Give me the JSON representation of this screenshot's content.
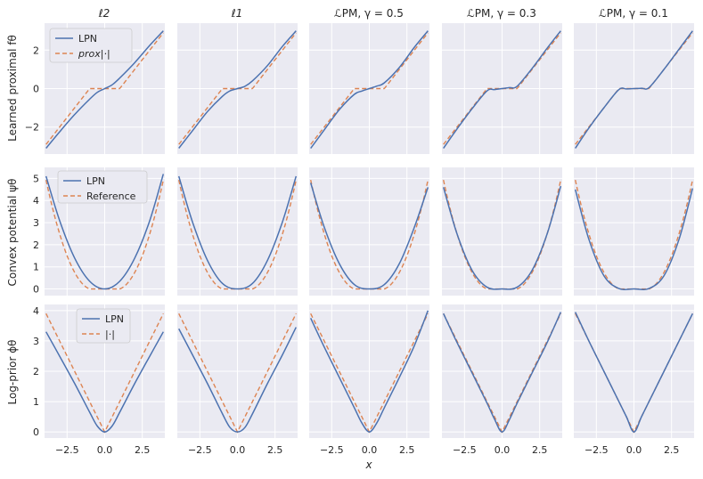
{
  "figure": {
    "xlabel": "x",
    "colors": {
      "lpn": "#4c72b0",
      "reference": "#dd8452",
      "panel_bg": "#eaeaf2",
      "grid": "#ffffff"
    }
  },
  "columns": [
    {
      "title": "ℓ2",
      "type": "l2"
    },
    {
      "title": "ℓ1",
      "type": "l1"
    },
    {
      "title": "ℒPM, γ = 0.5",
      "type": "pm",
      "gamma": 0.5
    },
    {
      "title": "ℒPM, γ = 0.3",
      "type": "pm",
      "gamma": 0.3
    },
    {
      "title": "ℒPM, γ = 0.1",
      "type": "pm",
      "gamma": 0.1
    }
  ],
  "chart_data": [
    {
      "type": "line",
      "row": "learned_proximal",
      "ylabel": "Learned proximal fθ",
      "xlim": [
        -4,
        4
      ],
      "ylim": [
        -3.4,
        3.4
      ],
      "xticks": [
        -2.5,
        0.0,
        2.5
      ],
      "yticks": [
        -2,
        0,
        2
      ],
      "ytick_labels": [
        "−2",
        "0",
        "2"
      ],
      "legend": {
        "location": "upper-left",
        "entries": [
          "LPN",
          "prox|·|"
        ]
      },
      "reference": {
        "name": "prox|·|",
        "style": "dashed",
        "description": "soft-threshold: 0 for |x|<1, x−sign(x) otherwise"
      },
      "series": [
        {
          "name": "LPN",
          "panel": "ℓ2",
          "x": [
            -3.9,
            -3,
            -2,
            -1,
            -0.5,
            0,
            0.5,
            1,
            2,
            3,
            3.9
          ],
          "y": [
            -3.1,
            -2.25,
            -1.35,
            -0.55,
            -0.2,
            0,
            0.2,
            0.55,
            1.35,
            2.25,
            3.0
          ]
        },
        {
          "name": "LPN",
          "panel": "ℓ1",
          "x": [
            -3.9,
            -3,
            -2,
            -1,
            -0.5,
            0,
            0.5,
            1,
            2,
            3,
            3.9
          ],
          "y": [
            -3.1,
            -2.2,
            -1.2,
            -0.4,
            -0.12,
            0,
            0.12,
            0.4,
            1.2,
            2.2,
            3.0
          ]
        },
        {
          "name": "LPN",
          "panel": "ℒPM, γ=0.5",
          "x": [
            -3.9,
            -3,
            -2,
            -1,
            -0.5,
            0,
            0.5,
            1,
            2,
            3,
            3.9
          ],
          "y": [
            -3.1,
            -2.15,
            -1.1,
            -0.3,
            -0.13,
            0,
            0.13,
            0.3,
            1.1,
            2.15,
            3.0
          ]
        },
        {
          "name": "LPN",
          "panel": "ℒPM, γ=0.3",
          "x": [
            -3.9,
            -3,
            -2,
            -1,
            -0.5,
            0,
            0.5,
            1,
            2,
            3,
            3.9
          ],
          "y": [
            -3.1,
            -2.1,
            -1.05,
            -0.12,
            -0.05,
            0,
            0.05,
            0.12,
            1.05,
            2.1,
            3.0
          ]
        },
        {
          "name": "LPN",
          "panel": "ℒPM, γ=0.1",
          "x": [
            -3.9,
            -3,
            -2,
            -1,
            -0.5,
            0,
            0.5,
            1,
            2,
            3,
            3.9
          ],
          "y": [
            -3.1,
            -2.05,
            -1.0,
            -0.05,
            -0.02,
            0,
            0.02,
            0.05,
            1.0,
            2.05,
            3.0
          ]
        }
      ]
    },
    {
      "type": "line",
      "row": "convex_potential",
      "ylabel": "Convex potential ψθ",
      "xlim": [
        -4,
        4
      ],
      "ylim": [
        -0.3,
        5.5
      ],
      "xticks": [
        -2.5,
        0.0,
        2.5
      ],
      "yticks": [
        0,
        1,
        2,
        3,
        4,
        5
      ],
      "ytick_labels": [
        "0",
        "1",
        "2",
        "3",
        "4",
        "5"
      ],
      "legend": {
        "location": "upper-left",
        "entries": [
          "LPN",
          "Reference"
        ]
      },
      "reference": {
        "name": "Reference",
        "style": "dashed",
        "description": "Huber-type envelope: 0 for |x|<1, (|x|−1)²/2 otherwise"
      },
      "series": [
        {
          "name": "LPN",
          "panel": "ℓ2",
          "x": [
            -3.9,
            -3,
            -2,
            -1,
            0,
            1,
            2,
            3,
            3.9
          ],
          "y": [
            5.1,
            3.1,
            1.4,
            0.35,
            0.0,
            0.35,
            1.4,
            3.1,
            5.2
          ]
        },
        {
          "name": "LPN",
          "panel": "ℓ1",
          "x": [
            -3.9,
            -3,
            -2,
            -1,
            0,
            1,
            2,
            3,
            3.9
          ],
          "y": [
            5.1,
            3.05,
            1.3,
            0.25,
            0.0,
            0.25,
            1.3,
            3.05,
            5.1
          ]
        },
        {
          "name": "LPN",
          "panel": "ℒPM, γ=0.5",
          "x": [
            -3.9,
            -3,
            -2,
            -1,
            0,
            1,
            2,
            3,
            3.9
          ],
          "y": [
            4.8,
            2.8,
            1.15,
            0.2,
            0.0,
            0.2,
            1.15,
            2.8,
            4.6
          ]
        },
        {
          "name": "LPN",
          "panel": "ℒPM, γ=0.3",
          "x": [
            -3.9,
            -3,
            -2,
            -1,
            0,
            1,
            2,
            3,
            3.9
          ],
          "y": [
            4.6,
            2.5,
            0.85,
            0.08,
            0.0,
            0.08,
            0.85,
            2.5,
            4.65
          ]
        },
        {
          "name": "LPN",
          "panel": "ℒPM, γ=0.1",
          "x": [
            -3.9,
            -3,
            -2,
            -1,
            0,
            1,
            2,
            3,
            3.9
          ],
          "y": [
            4.5,
            2.25,
            0.6,
            0.02,
            0.0,
            0.02,
            0.6,
            2.25,
            4.55
          ]
        }
      ]
    },
    {
      "type": "line",
      "row": "log_prior",
      "ylabel": "Log-prior ϕθ",
      "xlim": [
        -4,
        4
      ],
      "ylim": [
        -0.2,
        4.2
      ],
      "xticks": [
        -2.5,
        0.0,
        2.5
      ],
      "xtick_labels": [
        "−2.5",
        "0.0",
        "2.5"
      ],
      "yticks": [
        0,
        1,
        2,
        3,
        4
      ],
      "ytick_labels": [
        "0",
        "1",
        "2",
        "3",
        "4"
      ],
      "legend": {
        "location": "upper-center",
        "entries": [
          "LPN",
          "|·|"
        ]
      },
      "reference": {
        "name": "|·|",
        "style": "dashed",
        "description": "absolute value |x|"
      },
      "series": [
        {
          "name": "LPN",
          "panel": "ℓ2",
          "x": [
            -3.9,
            -3,
            -2,
            -1,
            -0.5,
            0,
            0.5,
            1,
            2,
            3,
            3.9
          ],
          "y": [
            3.3,
            2.5,
            1.6,
            0.65,
            0.2,
            0.0,
            0.2,
            0.65,
            1.6,
            2.5,
            3.3
          ]
        },
        {
          "name": "LPN",
          "panel": "ℓ1",
          "x": [
            -3.9,
            -3,
            -2,
            -1,
            -0.5,
            0,
            0.5,
            1,
            2,
            3,
            3.9
          ],
          "y": [
            3.4,
            2.55,
            1.6,
            0.6,
            0.15,
            0.0,
            0.15,
            0.6,
            1.6,
            2.55,
            3.45
          ]
        },
        {
          "name": "LPN",
          "panel": "ℒPM, γ=0.5",
          "x": [
            -3.9,
            -3,
            -2,
            -1,
            -0.5,
            0,
            0.5,
            1,
            2,
            3,
            3.9
          ],
          "y": [
            3.75,
            2.8,
            1.8,
            0.8,
            0.3,
            0.0,
            0.3,
            0.8,
            1.8,
            2.85,
            4.0
          ]
        },
        {
          "name": "LPN",
          "panel": "ℒPM, γ=0.3",
          "x": [
            -3.9,
            -3,
            -2,
            -1,
            -0.5,
            0,
            0.5,
            1,
            2,
            3,
            3.9
          ],
          "y": [
            3.9,
            2.95,
            1.95,
            0.95,
            0.42,
            0.0,
            0.42,
            0.95,
            1.95,
            2.95,
            3.95
          ]
        },
        {
          "name": "LPN",
          "panel": "ℒPM, γ=0.1",
          "x": [
            -3.9,
            -3,
            -2,
            -1,
            -0.5,
            0,
            0.5,
            1,
            2,
            3,
            3.9
          ],
          "y": [
            3.95,
            3.0,
            2.0,
            1.0,
            0.5,
            0.0,
            0.5,
            1.0,
            2.0,
            3.0,
            3.9
          ]
        }
      ]
    }
  ]
}
